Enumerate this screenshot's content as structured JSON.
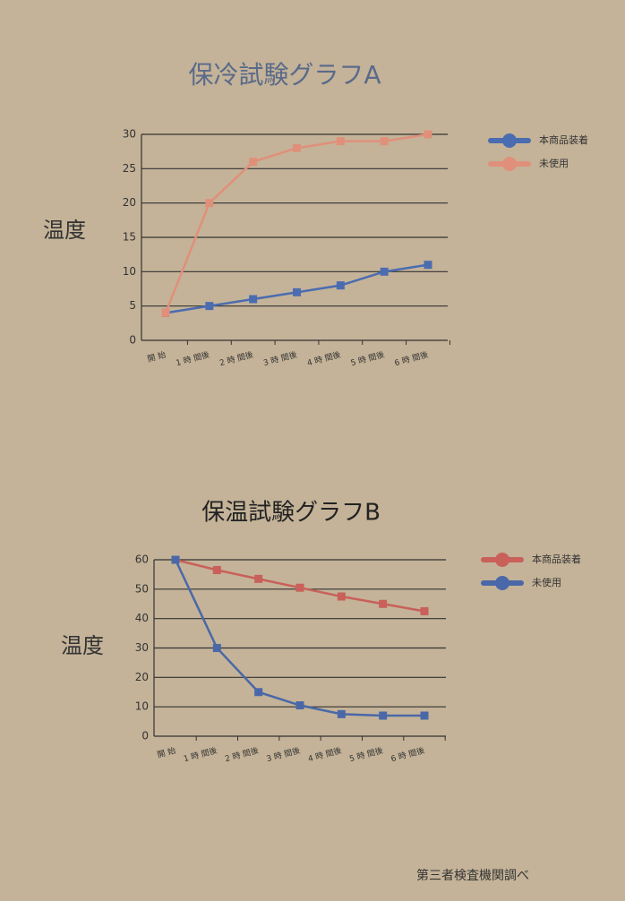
{
  "chart_data": [
    {
      "type": "line",
      "title": "保冷試験グラフA",
      "y_label": "温度",
      "categories": [
        "開 始",
        "1 時 間後",
        "2 時 間後",
        "3 時 間後",
        "4 時 間後",
        "5 時 間後",
        "6 時 間後"
      ],
      "series": [
        {
          "name": "本商品装着",
          "color": "#4b6cb0",
          "values": [
            4,
            5,
            6,
            7,
            8,
            10,
            11
          ]
        },
        {
          "name": "未使用",
          "color": "#e0907a",
          "values": [
            4,
            20,
            26,
            28,
            29,
            29,
            30
          ]
        }
      ],
      "ylim": [
        0,
        30
      ],
      "yticks": [
        0,
        5,
        10,
        15,
        20,
        25,
        30
      ],
      "grid": true,
      "legend": "right"
    },
    {
      "type": "line",
      "title": "保温試験グラフB",
      "y_label": "温度",
      "categories": [
        "開 始",
        "1 時 間後",
        "2 時 間後",
        "3 時 間後",
        "4 時 間後",
        "5 時 間後",
        "6 時 間後"
      ],
      "series": [
        {
          "name": "本商品装着",
          "color": "#c9605a",
          "values": [
            60,
            56.5,
            53.5,
            50.5,
            47.5,
            45,
            42.5
          ]
        },
        {
          "name": "未使用",
          "color": "#4a68a8",
          "values": [
            60,
            30,
            15,
            10.5,
            7.5,
            7,
            7
          ]
        }
      ],
      "ylim": [
        0,
        60
      ],
      "yticks": [
        0,
        10,
        20,
        30,
        40,
        50,
        60
      ],
      "grid": true,
      "legend": "right"
    }
  ],
  "footer": "第三者検査機関調べ"
}
